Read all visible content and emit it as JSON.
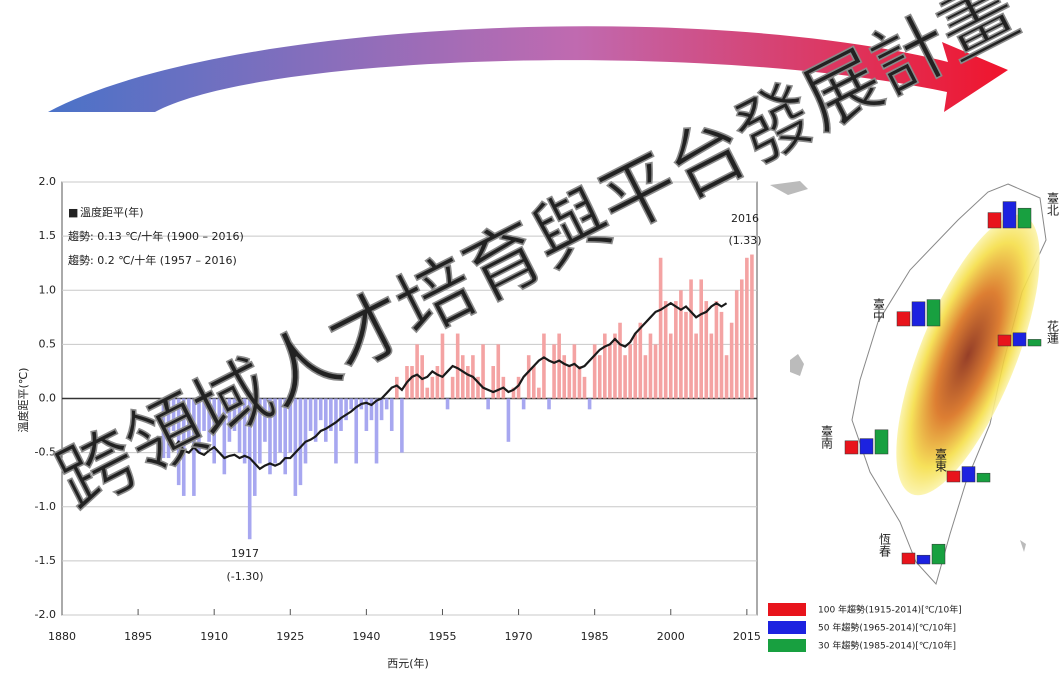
{
  "watermark": "跨領域人才培育與平台發展計畫",
  "chart_data": [
    {
      "type": "bar-line",
      "x_label": "西元(年)",
      "y_label": "溫度距平(℃)",
      "x": [
        1900,
        1901,
        1902,
        1903,
        1904,
        1905,
        1906,
        1907,
        1908,
        1909,
        1910,
        1911,
        1912,
        1913,
        1914,
        1915,
        1916,
        1917,
        1918,
        1919,
        1920,
        1921,
        1922,
        1923,
        1924,
        1925,
        1926,
        1927,
        1928,
        1929,
        1930,
        1931,
        1932,
        1933,
        1934,
        1935,
        1936,
        1937,
        1938,
        1939,
        1940,
        1941,
        1942,
        1943,
        1944,
        1945,
        1946,
        1947,
        1948,
        1949,
        1950,
        1951,
        1952,
        1953,
        1954,
        1955,
        1956,
        1957,
        1958,
        1959,
        1960,
        1961,
        1962,
        1963,
        1964,
        1965,
        1966,
        1967,
        1968,
        1969,
        1970,
        1971,
        1972,
        1973,
        1974,
        1975,
        1976,
        1977,
        1978,
        1979,
        1980,
        1981,
        1982,
        1983,
        1984,
        1985,
        1986,
        1987,
        1988,
        1989,
        1990,
        1991,
        1992,
        1993,
        1994,
        1995,
        1996,
        1997,
        1998,
        1999,
        2000,
        2001,
        2002,
        2003,
        2004,
        2005,
        2006,
        2007,
        2008,
        2009,
        2010,
        2011,
        2012,
        2013,
        2014,
        2015,
        2016
      ],
      "series": [
        {
          "name": "溫度距平(年)",
          "positive_color": "#f4a3a3",
          "negative_color": "#a7a7f0",
          "values": [
            -0.55,
            -0.55,
            -0.3,
            -0.8,
            -0.9,
            -0.4,
            -0.9,
            -0.5,
            -0.3,
            -0.4,
            -0.6,
            -0.2,
            -0.7,
            -0.4,
            -0.3,
            -0.5,
            -0.6,
            -1.3,
            -0.9,
            -0.6,
            -0.4,
            -0.7,
            -0.6,
            -0.5,
            -0.7,
            -0.5,
            -0.9,
            -0.8,
            -0.6,
            -0.3,
            -0.4,
            -0.2,
            -0.4,
            -0.3,
            -0.6,
            -0.3,
            -0.2,
            -0.1,
            -0.6,
            -0.1,
            -0.3,
            -0.2,
            -0.6,
            -0.2,
            -0.1,
            -0.3,
            0.2,
            -0.5,
            0.3,
            0.3,
            0.5,
            0.4,
            0.1,
            0.2,
            0.3,
            0.6,
            -0.1,
            0.2,
            0.6,
            0.4,
            0.3,
            0.4,
            0.2,
            0.5,
            -0.1,
            0.3,
            0.5,
            0.2,
            -0.4,
            0.1,
            0.2,
            -0.1,
            0.4,
            0.3,
            0.1,
            0.6,
            -0.1,
            0.5,
            0.6,
            0.4,
            0.3,
            0.5,
            0.3,
            0.2,
            -0.1,
            0.5,
            0.4,
            0.6,
            0.5,
            0.6,
            0.7,
            0.4,
            0.5,
            0.6,
            0.7,
            0.4,
            0.6,
            0.5,
            1.3,
            0.9,
            0.6,
            0.9,
            1.0,
            0.8,
            1.1,
            0.6,
            1.1,
            0.9,
            0.6,
            0.9,
            0.8,
            0.4,
            0.7,
            1.0,
            1.1,
            1.3,
            1.33
          ]
        },
        {
          "color": "#1a1a1a",
          "values": [
            null,
            -0.42,
            -0.45,
            -0.4,
            -0.48,
            -0.5,
            -0.45,
            -0.5,
            -0.52,
            -0.48,
            -0.45,
            -0.5,
            -0.55,
            -0.53,
            -0.52,
            -0.55,
            -0.53,
            -0.55,
            -0.6,
            -0.65,
            -0.62,
            -0.6,
            -0.62,
            -0.6,
            -0.55,
            -0.55,
            -0.5,
            -0.45,
            -0.4,
            -0.38,
            -0.35,
            -0.3,
            -0.28,
            -0.25,
            -0.22,
            -0.18,
            -0.15,
            -0.12,
            -0.08,
            -0.05,
            -0.04,
            -0.06,
            -0.02,
            0.0,
            0.05,
            0.1,
            0.12,
            0.08,
            0.15,
            0.2,
            0.22,
            0.18,
            0.2,
            0.25,
            0.22,
            0.2,
            0.25,
            0.3,
            0.28,
            0.25,
            0.22,
            0.2,
            0.15,
            0.1,
            0.08,
            0.06,
            0.08,
            0.1,
            0.06,
            0.08,
            0.12,
            0.2,
            0.25,
            0.3,
            0.35,
            0.38,
            0.35,
            0.33,
            0.35,
            0.32,
            0.3,
            0.32,
            0.28,
            0.3,
            0.35,
            0.4,
            0.45,
            0.48,
            0.5,
            0.55,
            0.5,
            0.48,
            0.52,
            0.6,
            0.65,
            0.7,
            0.75,
            0.8,
            0.82,
            0.85,
            0.88,
            0.85,
            0.82,
            0.85,
            0.8,
            0.75,
            0.78,
            0.8,
            0.85,
            0.88,
            0.85,
            0.88,
            null,
            null,
            null,
            null,
            null
          ]
        }
      ],
      "legend_marker": "■",
      "trend_texts": [
        "趨勢: 0.13 ℃/十年 (1900 – 2016)",
        "趨勢: 0.2 ℃/十年 (1957 – 2016)"
      ],
      "annotations": [
        "2016",
        "(1.33)",
        "1917",
        "(-1.30)"
      ],
      "xlim": [
        1880,
        2017
      ],
      "xticks": [
        1880,
        1895,
        1910,
        1925,
        1940,
        1955,
        1970,
        1985,
        2000,
        2015
      ],
      "ylim": [
        -2,
        2
      ],
      "yticks": [
        {
          "value": -2,
          "label": "-2.0"
        },
        {
          "value": -1.5,
          "label": "-1.5"
        },
        {
          "value": -1,
          "label": "-1.0"
        },
        {
          "value": -0.5,
          "label": "-0.5"
        },
        {
          "value": 0,
          "label": "0.0"
        },
        {
          "value": 0.5,
          "label": "0.5"
        },
        {
          "value": 1,
          "label": "1.0"
        },
        {
          "value": 1.5,
          "label": "1.5"
        },
        {
          "value": 2,
          "label": "2.0"
        }
      ],
      "grid": true
    },
    {
      "type": "station-bars",
      "categories": [
        "臺北",
        "臺中",
        "花蓮",
        "臺南",
        "臺東",
        "恆春"
      ],
      "series": [
        {
          "name": "100 年趨勢(1915-2014)[℃/10年]",
          "color": "#e8141c",
          "values": [
            0.14,
            0.13,
            0.1,
            0.12,
            0.1,
            0.1
          ]
        },
        {
          "name": "50 年趨勢(1965-2014)[℃/10年]",
          "color": "#1c22e0",
          "values": [
            0.24,
            0.22,
            0.12,
            0.14,
            0.14,
            0.08
          ]
        },
        {
          "name": "30 年趨勢(1985-2014)[℃/10年]",
          "color": "#18a040",
          "values": [
            0.18,
            0.24,
            0.06,
            0.22,
            0.08,
            0.18
          ]
        }
      ]
    }
  ]
}
